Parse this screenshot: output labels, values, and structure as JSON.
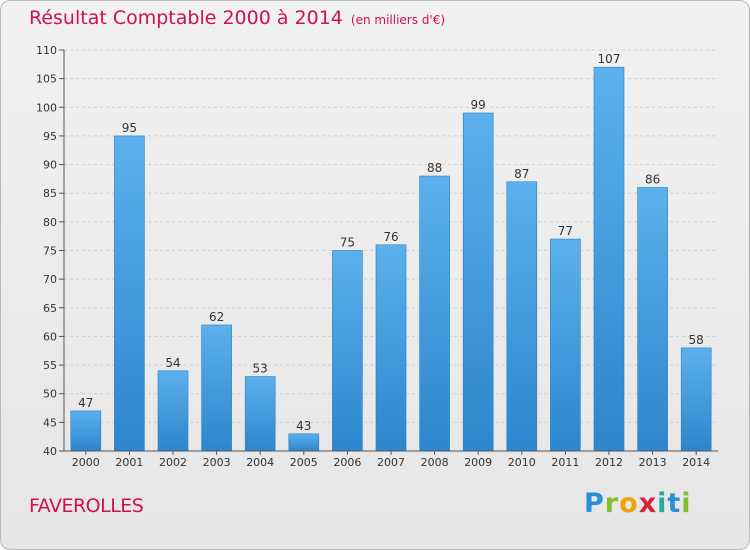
{
  "title": "Résultat Comptable 2000 à 2014",
  "subtitle": "(en milliers d'€)",
  "town": "FAVEROLLES",
  "logo_letters": [
    "P",
    "r",
    "o",
    "x",
    "i",
    "t",
    "i"
  ],
  "chart_data": {
    "type": "bar",
    "title": "Résultat Comptable 2000 à 2014",
    "subtitle": "(en milliers d'€)",
    "categories": [
      "2000",
      "2001",
      "2002",
      "2003",
      "2004",
      "2005",
      "2006",
      "2007",
      "2008",
      "2009",
      "2010",
      "2011",
      "2012",
      "2013",
      "2014"
    ],
    "values": [
      47,
      95,
      54,
      62,
      53,
      43,
      75,
      76,
      88,
      99,
      87,
      77,
      107,
      86,
      58
    ],
    "ylim": [
      40,
      110
    ],
    "yticks": [
      40,
      45,
      50,
      55,
      60,
      65,
      70,
      75,
      80,
      85,
      90,
      95,
      100,
      105,
      110
    ],
    "grid": true,
    "bar_color": "#3f9ee0"
  }
}
